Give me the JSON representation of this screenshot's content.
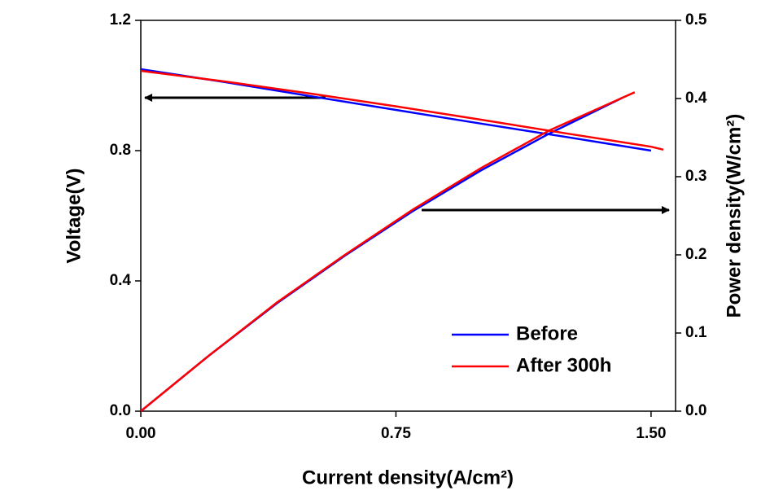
{
  "chart_data": {
    "type": "line",
    "x_label": "Current density(A/cm²)",
    "y_label": "Voltage(V)",
    "y2_label": "Power density(W/cm²)",
    "xlim": [
      0,
      1.572
    ],
    "ylim": [
      0,
      1.2
    ],
    "y2lim": [
      0,
      0.5
    ],
    "xticks": [
      {
        "value": 0,
        "label": "0.00"
      },
      0.75,
      {
        "value": 1.5,
        "label": "1.50"
      }
    ],
    "yticks": [
      {
        "value": 0,
        "label": "0.0"
      },
      0.4,
      0.8,
      1.2
    ],
    "y2ticks": [
      {
        "value": 0,
        "label": "0.0"
      },
      0.1,
      0.2,
      0.3,
      0.4,
      0.5
    ],
    "series": [
      {
        "name": "Before",
        "color": "#0000ff",
        "voltage": {
          "x": [
            0,
            0.25,
            0.5,
            0.75,
            1.0,
            1.25,
            1.5
          ],
          "values": [
            1.05,
            1.01,
            0.967,
            0.925,
            0.883,
            0.842,
            0.8
          ]
        },
        "power": {
          "x": [
            0,
            0.2,
            0.4,
            0.6,
            0.8,
            1.0,
            1.2,
            1.416
          ],
          "values": [
            0,
            0.071,
            0.138,
            0.199,
            0.256,
            0.308,
            0.355,
            0.401
          ]
        }
      },
      {
        "name": "After 300h",
        "color": "#ff0000",
        "voltage": {
          "x": [
            0,
            0.25,
            0.5,
            0.75,
            1.0,
            1.25,
            1.5,
            1.536
          ],
          "values": [
            1.045,
            1.012,
            0.975,
            0.936,
            0.895,
            0.853,
            0.812,
            0.803
          ]
        },
        "power": {
          "x": [
            0,
            0.2,
            0.4,
            0.6,
            0.8,
            1.0,
            1.2,
            1.452
          ],
          "values": [
            0,
            0.071,
            0.139,
            0.2,
            0.258,
            0.311,
            0.359,
            0.408
          ]
        }
      }
    ],
    "legend": "lower right"
  }
}
